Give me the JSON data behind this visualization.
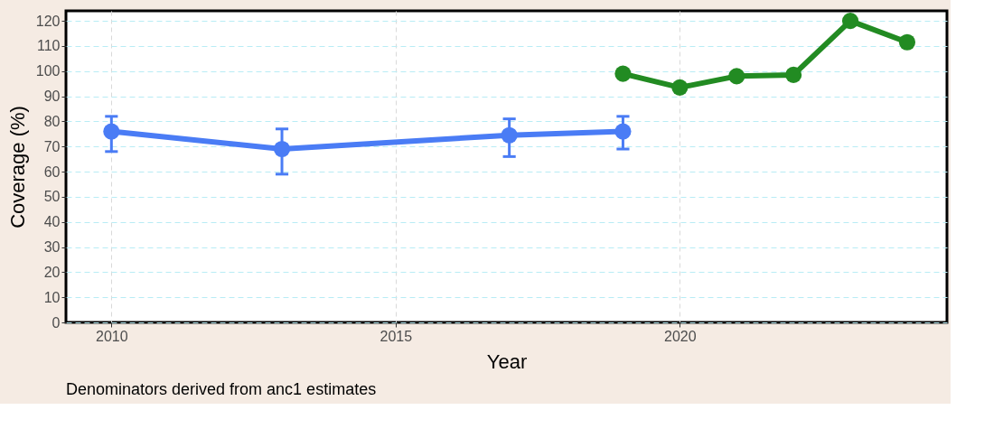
{
  "chart_data": {
    "type": "line",
    "xlabel": "Year",
    "ylabel": "Coverage (%)",
    "xlim": [
      2009.2,
      2024.7
    ],
    "xticks": [
      2010,
      2015,
      2020
    ],
    "ylim": [
      0,
      124
    ],
    "yticks": [
      0,
      10,
      20,
      30,
      40,
      50,
      60,
      70,
      80,
      90,
      100,
      110,
      120
    ],
    "grid": true,
    "marker": "circle",
    "line_style": "solid",
    "series": [
      {
        "color": "#4a7cf5",
        "x": [
          2010,
          2013,
          2017,
          2019
        ],
        "values": [
          76,
          69,
          74.5,
          76
        ],
        "errors": [
          [
            68,
            82
          ],
          [
            59,
            77
          ],
          [
            66,
            81
          ],
          [
            69,
            82
          ]
        ]
      },
      {
        "color": "#228b22",
        "x": [
          2019,
          2020,
          2021,
          2022,
          2023,
          2024
        ],
        "values": [
          99,
          93.5,
          98,
          98.5,
          120,
          111.5
        ]
      }
    ],
    "annotations": [
      "Denominators derived from anc1 estimates"
    ]
  }
}
